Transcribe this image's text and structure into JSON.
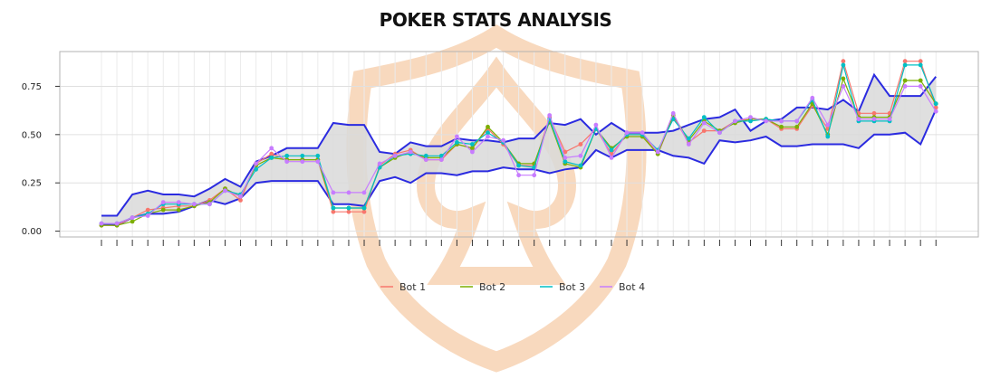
{
  "chart_data": {
    "type": "line",
    "title": "POKER STATS ANALYSIS",
    "xlabel": "",
    "ylabel": "",
    "ylim": [
      -0.03,
      0.93
    ],
    "y_ticks": [
      0.0,
      0.25,
      0.5,
      0.75
    ],
    "y_tick_labels": [
      "0.00",
      "0.25",
      "0.50",
      "0.75"
    ],
    "grid": true,
    "legend_position": "bottom",
    "n_points": 55,
    "colors": {
      "Bot 1": "#F8766D",
      "Bot 2": "#7CAE00",
      "Bot 3": "#00BFC4",
      "Bot 4": "#C77CFF",
      "band_fill": "#d9d9d9",
      "band_line": "#2b2be0",
      "watermark": "#f7d2b3"
    },
    "band": {
      "upper": [
        0.08,
        0.08,
        0.19,
        0.21,
        0.19,
        0.19,
        0.18,
        0.22,
        0.27,
        0.23,
        0.36,
        0.39,
        0.43,
        0.43,
        0.43,
        0.56,
        0.55,
        0.55,
        0.41,
        0.4,
        0.46,
        0.44,
        0.44,
        0.48,
        0.47,
        0.47,
        0.46,
        0.48,
        0.48,
        0.56,
        0.55,
        0.58,
        0.5,
        0.56,
        0.51,
        0.51,
        0.51,
        0.52,
        0.55,
        0.58,
        0.59,
        0.63,
        0.52,
        0.57,
        0.58,
        0.64,
        0.64,
        0.63,
        0.68,
        0.62,
        0.81,
        0.7,
        0.7,
        0.7,
        0.8
      ],
      "lower": [
        0.04,
        0.03,
        0.07,
        0.09,
        0.09,
        0.1,
        0.13,
        0.16,
        0.14,
        0.17,
        0.25,
        0.26,
        0.26,
        0.26,
        0.26,
        0.14,
        0.14,
        0.13,
        0.26,
        0.28,
        0.25,
        0.3,
        0.3,
        0.29,
        0.31,
        0.31,
        0.33,
        0.32,
        0.32,
        0.3,
        0.32,
        0.33,
        0.42,
        0.38,
        0.42,
        0.42,
        0.42,
        0.39,
        0.38,
        0.35,
        0.47,
        0.46,
        0.47,
        0.49,
        0.44,
        0.44,
        0.45,
        0.45,
        0.45,
        0.43,
        0.5,
        0.5,
        0.51,
        0.45,
        0.63
      ]
    },
    "series": [
      {
        "name": "Bot 1",
        "values": [
          0.03,
          0.03,
          0.07,
          0.11,
          0.12,
          0.13,
          0.13,
          0.16,
          0.22,
          0.16,
          0.35,
          0.4,
          0.37,
          0.37,
          0.37,
          0.1,
          0.1,
          0.1,
          0.34,
          0.4,
          0.42,
          0.37,
          0.37,
          0.45,
          0.43,
          0.53,
          0.45,
          0.34,
          0.34,
          0.59,
          0.41,
          0.45,
          0.53,
          0.4,
          0.5,
          0.5,
          0.4,
          0.59,
          0.46,
          0.52,
          0.52,
          0.57,
          0.58,
          0.58,
          0.53,
          0.53,
          0.65,
          0.53,
          0.88,
          0.61,
          0.61,
          0.61,
          0.88,
          0.88,
          0.64
        ]
      },
      {
        "name": "Bot 2",
        "values": [
          0.03,
          0.03,
          0.05,
          0.09,
          0.11,
          0.11,
          0.13,
          0.15,
          0.22,
          0.18,
          0.34,
          0.38,
          0.37,
          0.37,
          0.37,
          0.12,
          0.12,
          0.12,
          0.33,
          0.38,
          0.41,
          0.38,
          0.38,
          0.45,
          0.43,
          0.54,
          0.46,
          0.35,
          0.35,
          0.57,
          0.35,
          0.33,
          0.53,
          0.43,
          0.49,
          0.49,
          0.4,
          0.6,
          0.47,
          0.57,
          0.52,
          0.56,
          0.58,
          0.58,
          0.54,
          0.54,
          0.66,
          0.5,
          0.79,
          0.59,
          0.59,
          0.59,
          0.78,
          0.78,
          0.66
        ]
      },
      {
        "name": "Bot 3",
        "values": [
          0.04,
          0.04,
          0.07,
          0.09,
          0.14,
          0.14,
          0.14,
          0.14,
          0.21,
          0.19,
          0.32,
          0.38,
          0.39,
          0.39,
          0.39,
          0.12,
          0.12,
          0.12,
          0.33,
          0.39,
          0.4,
          0.39,
          0.39,
          0.46,
          0.45,
          0.51,
          0.46,
          0.34,
          0.33,
          0.58,
          0.36,
          0.34,
          0.53,
          0.42,
          0.5,
          0.5,
          0.42,
          0.58,
          0.48,
          0.59,
          0.51,
          0.57,
          0.57,
          0.58,
          0.57,
          0.57,
          0.68,
          0.49,
          0.86,
          0.57,
          0.57,
          0.57,
          0.86,
          0.86,
          0.66
        ]
      },
      {
        "name": "Bot 4",
        "values": [
          0.04,
          0.04,
          0.07,
          0.08,
          0.15,
          0.15,
          0.14,
          0.14,
          0.21,
          0.18,
          0.35,
          0.43,
          0.36,
          0.36,
          0.36,
          0.2,
          0.2,
          0.2,
          0.35,
          0.39,
          0.41,
          0.37,
          0.37,
          0.49,
          0.41,
          0.49,
          0.47,
          0.29,
          0.29,
          0.6,
          0.38,
          0.39,
          0.55,
          0.38,
          0.51,
          0.51,
          0.41,
          0.61,
          0.45,
          0.56,
          0.51,
          0.57,
          0.59,
          0.57,
          0.57,
          0.57,
          0.69,
          0.55,
          0.75,
          0.58,
          0.58,
          0.58,
          0.75,
          0.75,
          0.62
        ]
      }
    ]
  }
}
